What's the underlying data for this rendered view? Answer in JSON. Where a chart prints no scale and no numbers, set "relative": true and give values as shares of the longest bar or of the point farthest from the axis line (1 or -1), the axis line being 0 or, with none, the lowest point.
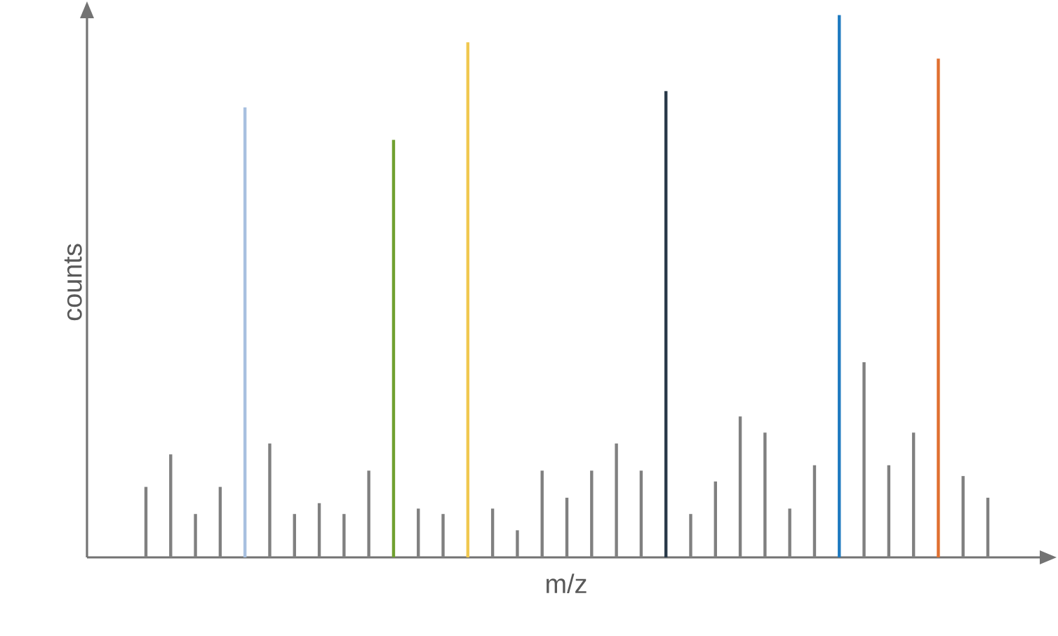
{
  "chart_data": {
    "type": "bar",
    "relative": true,
    "xlabel": "m/z",
    "ylabel": "counts",
    "categories": [
      null,
      null,
      null,
      null,
      null,
      null,
      null,
      null,
      null,
      null,
      null,
      null,
      null,
      null,
      null,
      null,
      null,
      null,
      null,
      null,
      null,
      null,
      null,
      null,
      null,
      null,
      null,
      null,
      null,
      null,
      null,
      null,
      null,
      null,
      null
    ],
    "values": [
      0.13,
      0.19,
      0.08,
      0.13,
      0.83,
      0.21,
      0.08,
      0.1,
      0.08,
      0.16,
      0.77,
      0.09,
      0.08,
      0.95,
      0.09,
      0.05,
      0.16,
      0.11,
      0.16,
      0.21,
      0.16,
      0.86,
      0.08,
      0.14,
      0.26,
      0.23,
      0.09,
      0.17,
      1,
      0.36,
      0.17,
      0.23,
      0.92,
      0.15,
      0.11
    ],
    "colors": [
      "#808080",
      "#808080",
      "#808080",
      "#808080",
      "#a8c0e0",
      "#808080",
      "#808080",
      "#808080",
      "#808080",
      "#808080",
      "#70a030",
      "#808080",
      "#808080",
      "#f0c850",
      "#808080",
      "#808080",
      "#808080",
      "#808080",
      "#808080",
      "#808080",
      "#808080",
      "#2a3a4a",
      "#808080",
      "#808080",
      "#808080",
      "#808080",
      "#808080",
      "#808080",
      "#1f7ac0",
      "#808080",
      "#808080",
      "#808080",
      "#e07030",
      "#808080",
      "#808080"
    ]
  }
}
